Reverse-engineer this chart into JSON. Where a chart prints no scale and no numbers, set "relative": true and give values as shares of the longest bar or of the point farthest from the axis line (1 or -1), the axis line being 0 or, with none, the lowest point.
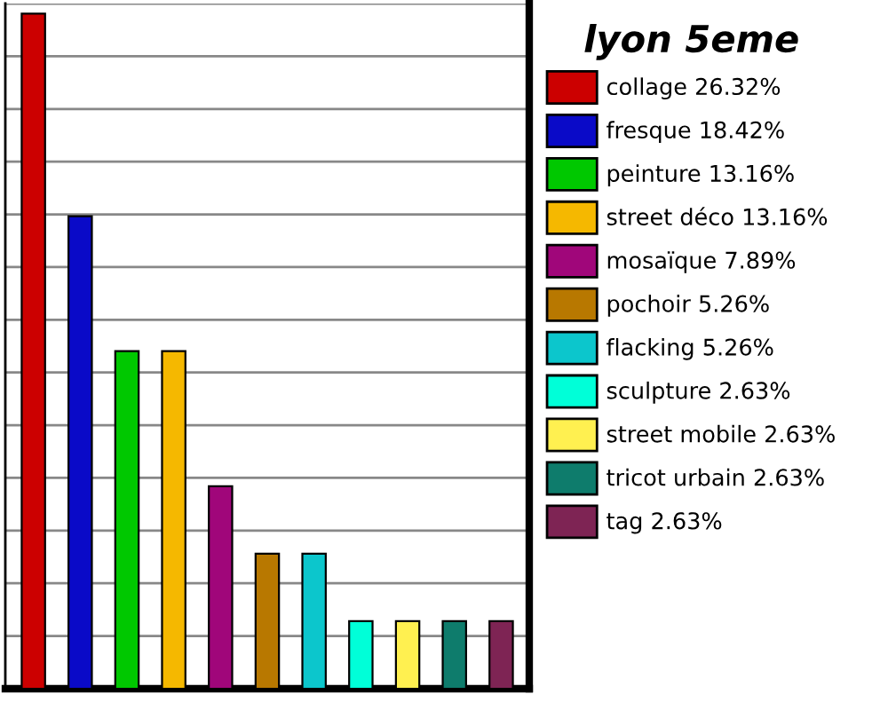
{
  "chart_data": {
    "type": "bar",
    "legend_title": "lyon 5eme",
    "categories": [
      null,
      null,
      null,
      null,
      null,
      null,
      null,
      null,
      null,
      null,
      null
    ],
    "relative": true,
    "grid": "y",
    "legend": "right",
    "stacked": true,
    "series": [
      {
        "name": "collage 26.32%",
        "color": "#cc0000",
        "values": [
          1,
          null,
          null,
          null,
          null,
          null,
          null,
          null,
          null,
          null,
          null
        ]
      },
      {
        "name": "fresque 18.42%",
        "color": "#0a0ac8",
        "values": [
          null,
          0.7,
          null,
          null,
          null,
          null,
          null,
          null,
          null,
          null,
          null
        ]
      },
      {
        "name": "peinture 13.16%",
        "color": "#00c800",
        "values": [
          null,
          null,
          0.5,
          null,
          null,
          null,
          null,
          null,
          null,
          null,
          null
        ]
      },
      {
        "name": "street déco 13.16%",
        "color": "#f5b800",
        "values": [
          null,
          null,
          null,
          0.5,
          null,
          null,
          null,
          null,
          null,
          null,
          null
        ]
      },
      {
        "name": "mosaïque 7.89%",
        "color": "#a0067a",
        "values": [
          null,
          null,
          null,
          null,
          0.3,
          null,
          null,
          null,
          null,
          null,
          null
        ]
      },
      {
        "name": "pochoir 5.26%",
        "color": "#b87800",
        "values": [
          null,
          null,
          null,
          null,
          null,
          0.2,
          null,
          null,
          null,
          null,
          null
        ]
      },
      {
        "name": "flacking 5.26%",
        "color": "#0cc6cc",
        "values": [
          null,
          null,
          null,
          null,
          null,
          null,
          0.2,
          null,
          null,
          null,
          null
        ]
      },
      {
        "name": "sculpture 2.63%",
        "color": "#00ffd8",
        "values": [
          null,
          null,
          null,
          null,
          null,
          null,
          null,
          0.1,
          null,
          null,
          null
        ]
      },
      {
        "name": "street mobile 2.63%",
        "color": "#fff050",
        "values": [
          null,
          null,
          null,
          null,
          null,
          null,
          null,
          null,
          0.1,
          null,
          null
        ]
      },
      {
        "name": "tricot urbain 2.63%",
        "color": "#0e7c6c",
        "values": [
          null,
          null,
          null,
          null,
          null,
          null,
          null,
          null,
          null,
          0.1,
          null
        ]
      },
      {
        "name": "tag 2.63%",
        "color": "#7e2454",
        "values": [
          null,
          null,
          null,
          null,
          null,
          null,
          null,
          null,
          null,
          null,
          0.1
        ]
      }
    ]
  }
}
